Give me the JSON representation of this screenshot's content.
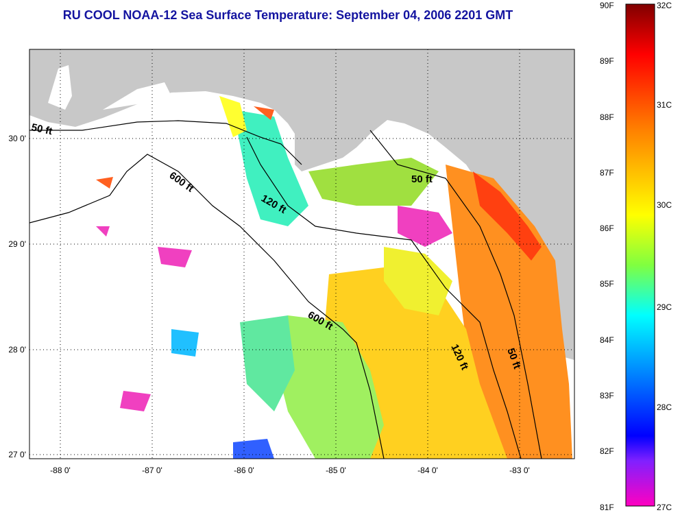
{
  "title": "RU COOL  NOAA-12  Sea Surface Temperature:  September 04, 2006 2201 GMT",
  "colors": {
    "title": "#1414a0",
    "land": "#c8c8c8",
    "ocean": "#ffffff"
  },
  "axes": {
    "lon_ticks": [
      {
        "value": -88,
        "label": "-88 0'"
      },
      {
        "value": -87,
        "label": "-87 0'"
      },
      {
        "value": -86,
        "label": "-86 0'"
      },
      {
        "value": -85,
        "label": "-85 0'"
      },
      {
        "value": -84,
        "label": "-84 0'"
      },
      {
        "value": -83,
        "label": "-83 0'"
      }
    ],
    "lat_ticks": [
      {
        "value": 30,
        "label": "30 0'"
      },
      {
        "value": 29,
        "label": "29 0'"
      },
      {
        "value": 28,
        "label": "28 0'"
      },
      {
        "value": 27,
        "label": "27 0'"
      }
    ]
  },
  "contours": [
    {
      "label": "50 ft"
    },
    {
      "label": "600 ft"
    },
    {
      "label": "120 ft"
    },
    {
      "label": "50 ft"
    },
    {
      "label": "600 ft"
    },
    {
      "label": "120 ft"
    },
    {
      "label": "50 ft"
    }
  ],
  "colorbar": {
    "fahrenheit": [
      "90F",
      "89F",
      "88F",
      "87F",
      "86F",
      "85F",
      "84F",
      "83F",
      "82F",
      "81F"
    ],
    "celsius": [
      "32C",
      "31C",
      "30C",
      "29C",
      "28C",
      "27C"
    ]
  }
}
